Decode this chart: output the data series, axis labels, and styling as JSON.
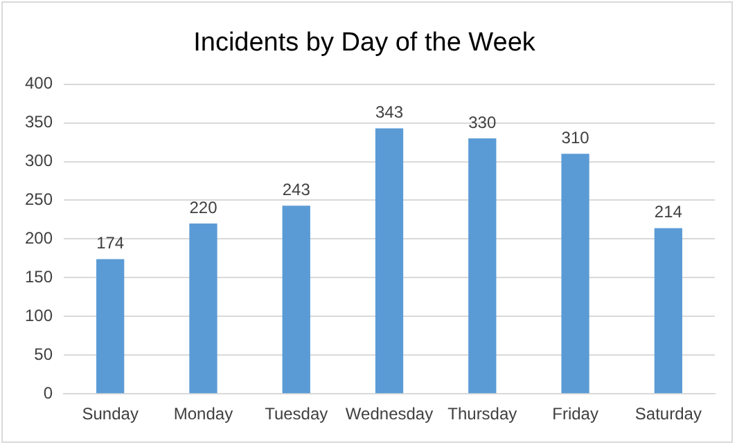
{
  "chart_data": {
    "type": "bar",
    "title": "Incidents by Day of the Week",
    "categories": [
      "Sunday",
      "Monday",
      "Tuesday",
      "Wednesday",
      "Thursday",
      "Friday",
      "Saturday"
    ],
    "values": [
      174,
      220,
      243,
      343,
      330,
      310,
      214
    ],
    "color": "#5b9bd5",
    "ylim": [
      0,
      400
    ],
    "yticks": [
      0,
      50,
      100,
      150,
      200,
      250,
      300,
      350,
      400
    ],
    "grid": "y",
    "data_labels": true
  }
}
